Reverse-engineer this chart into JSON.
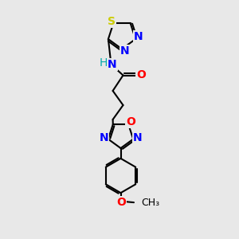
{
  "background_color": "#e8e8e8",
  "bond_color": "#000000",
  "bond_width": 1.5,
  "atoms": {
    "S": {
      "color": "#cccc00",
      "fontsize": 10,
      "fontweight": "bold"
    },
    "N": {
      "color": "#0000ff",
      "fontsize": 10,
      "fontweight": "bold"
    },
    "O": {
      "color": "#ff0000",
      "fontsize": 10,
      "fontweight": "bold"
    },
    "H": {
      "color": "#00aaaa",
      "fontsize": 10,
      "fontweight": "normal"
    }
  },
  "figsize": [
    3.0,
    3.0
  ],
  "dpi": 100,
  "xl": 0,
  "xr": 10,
  "yb": 0,
  "yt": 10
}
